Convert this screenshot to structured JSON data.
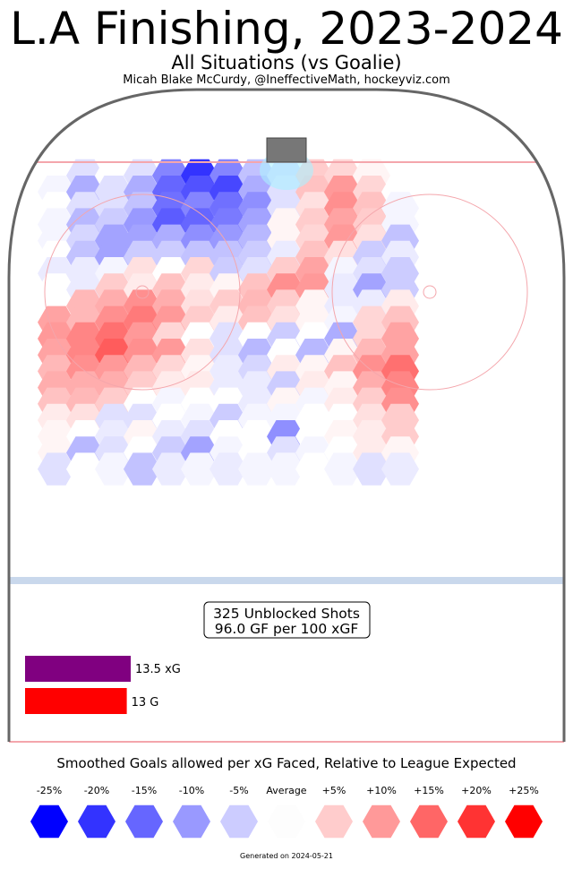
{
  "title": "L.A Finishing, 2023-2024",
  "subtitle": "All Situations (vs Goalie)",
  "byline": "Micah Blake McCurdy, @IneffectiveMath, hockeyviz.com",
  "stats": {
    "shots_line": "325 Unblocked Shots",
    "rate_line": "96.0 GF per 100 xGF"
  },
  "bars": {
    "xg": {
      "value": 13.5,
      "label": "13.5 xG",
      "color": "#800080"
    },
    "g": {
      "value": 13,
      "label": "13 G",
      "color": "#ff0000"
    }
  },
  "legend": {
    "title": "Smoothed Goals allowed per xG Faced, Relative to League Expected",
    "items": [
      {
        "label": "-25%",
        "value": -25,
        "color": "#0000ff"
      },
      {
        "label": "-20%",
        "value": -20,
        "color": "#3333ff"
      },
      {
        "label": "-15%",
        "value": -15,
        "color": "#6666ff"
      },
      {
        "label": "-10%",
        "value": -10,
        "color": "#9999ff"
      },
      {
        "label": "-5%",
        "value": -5,
        "color": "#ccccff"
      },
      {
        "label": "Average",
        "value": 0,
        "color": "#fdfdfd"
      },
      {
        "label": "+5%",
        "value": 5,
        "color": "#ffcccc"
      },
      {
        "label": "+10%",
        "value": 10,
        "color": "#ff9999"
      },
      {
        "label": "+15%",
        "value": 15,
        "color": "#ff6666"
      },
      {
        "label": "+20%",
        "value": 20,
        "color": "#ff3333"
      },
      {
        "label": "+25%",
        "value": 25,
        "color": "#ff0000"
      }
    ]
  },
  "footer": "Generated on 2024-05-21",
  "colors": {
    "goal_line": "#f4a6ac",
    "blue_line": "#c9d8ec",
    "boards": "#666666",
    "net": "#777777"
  },
  "chart_data": {
    "type": "heatmap",
    "title": "L.A Finishing, 2023-2024",
    "subtitle": "All Situations (vs Goalie)",
    "color_scale": "Smoothed Goals allowed per xG Faced, Relative to League Expected (%)",
    "row_values": [
      [
        null,
        -3,
        0,
        -3,
        -12,
        -20,
        -12,
        -6,
        -4,
        5,
        4,
        1,
        null
      ],
      [
        -1,
        -8,
        -3,
        -8,
        -15,
        -17,
        -18,
        -8,
        -3,
        6,
        10,
        4,
        0
      ],
      [
        0,
        -3,
        -3,
        -6,
        -14,
        -12,
        -14,
        -11,
        -3,
        3,
        11,
        6,
        -1
      ],
      [
        -1,
        -7,
        -5,
        -10,
        -16,
        -15,
        -13,
        -9,
        1,
        5,
        9,
        5,
        -1
      ],
      [
        -1,
        -4,
        -9,
        -9,
        -8,
        -11,
        -10,
        -7,
        1,
        4,
        10,
        3,
        -6
      ],
      [
        0,
        -6,
        -9,
        -5,
        -5,
        -6,
        -6,
        -5,
        -2,
        6,
        3,
        -5,
        -2
      ],
      [
        -2,
        -2,
        -1,
        3,
        0,
        4,
        -5,
        -3,
        5,
        9,
        -1,
        -3,
        -5
      ],
      [
        0,
        -2,
        5,
        2,
        6,
        2,
        1,
        6,
        11,
        10,
        -2,
        -9,
        -5
      ],
      [
        0,
        7,
        8,
        11,
        8,
        3,
        5,
        7,
        5,
        1,
        -2,
        -2,
        2
      ],
      [
        9,
        7,
        11,
        13,
        10,
        5,
        2,
        6,
        3,
        1,
        -1,
        4,
        6
      ],
      [
        10,
        12,
        14,
        10,
        4,
        0,
        -3,
        0,
        -5,
        0,
        -8,
        4,
        9
      ],
      [
        9,
        12,
        16,
        11,
        10,
        3,
        -3,
        -7,
        0,
        -7,
        1,
        7,
        9
      ],
      [
        7,
        11,
        10,
        7,
        4,
        1,
        -2,
        -4,
        2,
        1,
        6,
        11,
        14
      ],
      [
        8,
        8,
        8,
        5,
        2,
        2,
        -2,
        -2,
        -5,
        2,
        1,
        8,
        12
      ],
      [
        6,
        7,
        5,
        0,
        -1,
        0,
        0,
        -2,
        1,
        -1,
        2,
        5,
        11
      ],
      [
        2,
        3,
        -3,
        -3,
        0,
        -1,
        -5,
        -1,
        -1,
        0,
        0,
        3,
        5
      ],
      [
        1,
        0,
        -2,
        1,
        -2,
        -3,
        0,
        0,
        -11,
        0,
        1,
        2,
        5
      ],
      [
        1,
        -7,
        -3,
        0,
        -5,
        -9,
        -1,
        0,
        -3,
        -1,
        0,
        2,
        1
      ],
      [
        -3,
        0,
        -1,
        -6,
        -2,
        -1,
        -2,
        -1,
        -1,
        0,
        -1,
        -3,
        -2
      ]
    ]
  }
}
